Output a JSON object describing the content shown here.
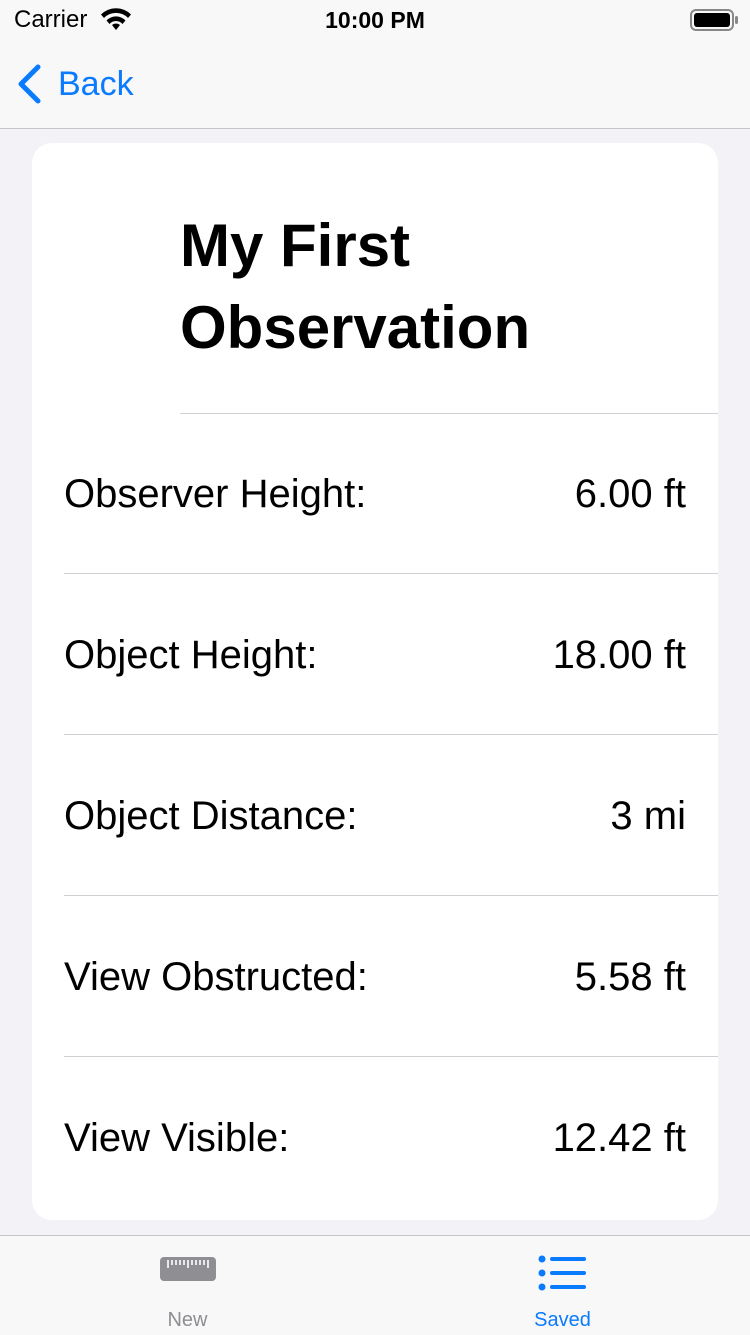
{
  "status_bar": {
    "carrier": "Carrier",
    "time": "10:00 PM"
  },
  "nav": {
    "back_label": "Back"
  },
  "observation": {
    "title": "My First Observation",
    "rows": [
      {
        "label": "Observer Height:",
        "value": "6.00 ft"
      },
      {
        "label": "Object Height:",
        "value": "18.00 ft"
      },
      {
        "label": "Object Distance:",
        "value": "3 mi"
      },
      {
        "label": "View Obstructed:",
        "value": "5.58 ft"
      },
      {
        "label": "View Visible:",
        "value": "12.42 ft"
      }
    ]
  },
  "tabs": [
    {
      "label": "New",
      "icon": "ruler-icon",
      "selected": false
    },
    {
      "label": "Saved",
      "icon": "list-icon",
      "selected": true
    }
  ],
  "colors": {
    "accent": "#0a7aff",
    "inactive": "#8e8e93",
    "background": "#f2f2f7",
    "card": "#ffffff"
  }
}
